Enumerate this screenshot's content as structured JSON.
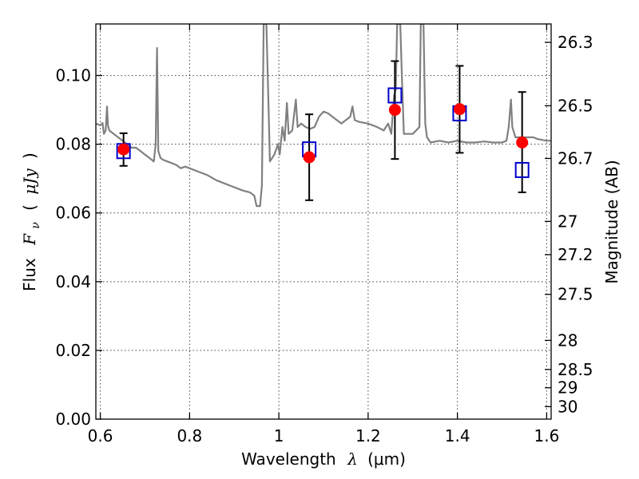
{
  "chart_data": {
    "type": "scatter",
    "xlabel": "Wavelength",
    "xlabel_symbol": "λ",
    "xlabel_unit": "(μm)",
    "ylabel_left": "Flux",
    "ylabel_left_symbol": "F",
    "ylabel_left_symbol_sub": "ν",
    "ylabel_left_unit_open": "(",
    "ylabel_left_unit": "μJy",
    "ylabel_left_unit_close": ")",
    "ylabel_right": "Magnitude (AB)",
    "xlim": [
      0.59,
      1.61
    ],
    "ylim": [
      0.0,
      0.115
    ],
    "grid": true,
    "x_ticks": [
      0.6,
      0.8,
      1.0,
      1.2,
      1.4,
      1.6
    ],
    "x_tick_labels": [
      "0.6",
      "0.8",
      "1",
      "1.2",
      "1.4",
      "1.6"
    ],
    "y_ticks": [
      0.0,
      0.02,
      0.04,
      0.06,
      0.08,
      0.1
    ],
    "y_tick_labels": [
      "0.00",
      "0.02",
      "0.04",
      "0.06",
      "0.08",
      "0.10"
    ],
    "right_ticks": [
      {
        "label": "26.3",
        "value": 26.3
      },
      {
        "label": "26.5",
        "value": 26.5
      },
      {
        "label": "26.7",
        "value": 26.7
      },
      {
        "label": "27",
        "value": 27.0
      },
      {
        "label": "27.2",
        "value": 27.2
      },
      {
        "label": "27.5",
        "value": 27.5
      },
      {
        "label": "28",
        "value": 28.0
      },
      {
        "label": "28.5",
        "value": 28.5
      },
      {
        "label": "29",
        "value": 29.0
      },
      {
        "label": "30",
        "value": 30.0
      }
    ],
    "series": [
      {
        "type": "line",
        "color": "#808080",
        "points": [
          [
            0.59,
            0.086
          ],
          [
            0.6,
            0.0855
          ],
          [
            0.605,
            0.0862
          ],
          [
            0.608,
            0.083
          ],
          [
            0.612,
            0.084
          ],
          [
            0.615,
            0.091
          ],
          [
            0.617,
            0.0855
          ],
          [
            0.62,
            0.084
          ],
          [
            0.63,
            0.083
          ],
          [
            0.64,
            0.082
          ],
          [
            0.65,
            0.081
          ],
          [
            0.66,
            0.08
          ],
          [
            0.67,
            0.079
          ],
          [
            0.68,
            0.079
          ],
          [
            0.69,
            0.078
          ],
          [
            0.7,
            0.077
          ],
          [
            0.71,
            0.076
          ],
          [
            0.72,
            0.075
          ],
          [
            0.724,
            0.08
          ],
          [
            0.727,
            0.108
          ],
          [
            0.73,
            0.078
          ],
          [
            0.735,
            0.076
          ],
          [
            0.74,
            0.0755
          ],
          [
            0.75,
            0.075
          ],
          [
            0.76,
            0.0745
          ],
          [
            0.77,
            0.074
          ],
          [
            0.78,
            0.073
          ],
          [
            0.79,
            0.0735
          ],
          [
            0.8,
            0.073
          ],
          [
            0.82,
            0.072
          ],
          [
            0.84,
            0.071
          ],
          [
            0.86,
            0.0695
          ],
          [
            0.88,
            0.0685
          ],
          [
            0.9,
            0.0675
          ],
          [
            0.92,
            0.0665
          ],
          [
            0.935,
            0.066
          ],
          [
            0.945,
            0.065
          ],
          [
            0.95,
            0.062
          ],
          [
            0.958,
            0.062
          ],
          [
            0.962,
            0.068
          ],
          [
            0.966,
            0.115
          ],
          [
            0.972,
            0.115
          ],
          [
            0.977,
            0.09
          ],
          [
            0.98,
            0.075
          ],
          [
            0.99,
            0.077
          ],
          [
            0.998,
            0.08
          ],
          [
            1.002,
            0.077
          ],
          [
            1.008,
            0.085
          ],
          [
            1.013,
            0.081
          ],
          [
            1.018,
            0.092
          ],
          [
            1.022,
            0.083
          ],
          [
            1.03,
            0.084
          ],
          [
            1.038,
            0.093
          ],
          [
            1.042,
            0.085
          ],
          [
            1.05,
            0.086
          ],
          [
            1.06,
            0.085
          ],
          [
            1.07,
            0.0845
          ],
          [
            1.08,
            0.085
          ],
          [
            1.09,
            0.088
          ],
          [
            1.1,
            0.0895
          ],
          [
            1.11,
            0.089
          ],
          [
            1.12,
            0.088
          ],
          [
            1.13,
            0.087
          ],
          [
            1.14,
            0.086
          ],
          [
            1.15,
            0.087
          ],
          [
            1.16,
            0.088
          ],
          [
            1.165,
            0.091
          ],
          [
            1.17,
            0.087
          ],
          [
            1.18,
            0.0865
          ],
          [
            1.2,
            0.086
          ],
          [
            1.22,
            0.085
          ],
          [
            1.235,
            0.084
          ],
          [
            1.245,
            0.086
          ],
          [
            1.252,
            0.083
          ],
          [
            1.258,
            0.094
          ],
          [
            1.262,
            0.096
          ],
          [
            1.265,
            0.115
          ],
          [
            1.272,
            0.115
          ],
          [
            1.276,
            0.098
          ],
          [
            1.28,
            0.083
          ],
          [
            1.3,
            0.083
          ],
          [
            1.315,
            0.085
          ],
          [
            1.318,
            0.115
          ],
          [
            1.324,
            0.115
          ],
          [
            1.328,
            0.086
          ],
          [
            1.332,
            0.082
          ],
          [
            1.34,
            0.0805
          ],
          [
            1.36,
            0.081
          ],
          [
            1.38,
            0.0805
          ],
          [
            1.4,
            0.081
          ],
          [
            1.42,
            0.0805
          ],
          [
            1.44,
            0.0805
          ],
          [
            1.46,
            0.0808
          ],
          [
            1.48,
            0.0805
          ],
          [
            1.5,
            0.0805
          ],
          [
            1.51,
            0.081
          ],
          [
            1.515,
            0.085
          ],
          [
            1.52,
            0.093
          ],
          [
            1.523,
            0.085
          ],
          [
            1.53,
            0.082
          ],
          [
            1.55,
            0.082
          ],
          [
            1.57,
            0.082
          ],
          [
            1.58,
            0.0815
          ],
          [
            1.6,
            0.081
          ],
          [
            1.61,
            0.081
          ]
        ]
      },
      {
        "type": "errorbar",
        "color": "#ff0000",
        "marker": "circle",
        "points": [
          {
            "x": 0.652,
            "y": 0.0785,
            "yerr_low": 0.0737,
            "yerr_high": 0.0832
          },
          {
            "x": 1.068,
            "y": 0.0762,
            "yerr_low": 0.0637,
            "yerr_high": 0.0887
          },
          {
            "x": 1.26,
            "y": 0.09,
            "yerr_low": 0.0757,
            "yerr_high": 0.1042
          },
          {
            "x": 1.405,
            "y": 0.0902,
            "yerr_low": 0.0775,
            "yerr_high": 0.1028
          },
          {
            "x": 1.545,
            "y": 0.0805,
            "yerr_low": 0.066,
            "yerr_high": 0.0952
          }
        ]
      },
      {
        "type": "scatter",
        "color": "#0000cc",
        "marker": "square-open",
        "points": [
          {
            "x": 0.652,
            "y": 0.078
          },
          {
            "x": 1.068,
            "y": 0.0785
          },
          {
            "x": 1.26,
            "y": 0.0942
          },
          {
            "x": 1.405,
            "y": 0.089
          },
          {
            "x": 1.545,
            "y": 0.0725
          }
        ]
      }
    ]
  }
}
